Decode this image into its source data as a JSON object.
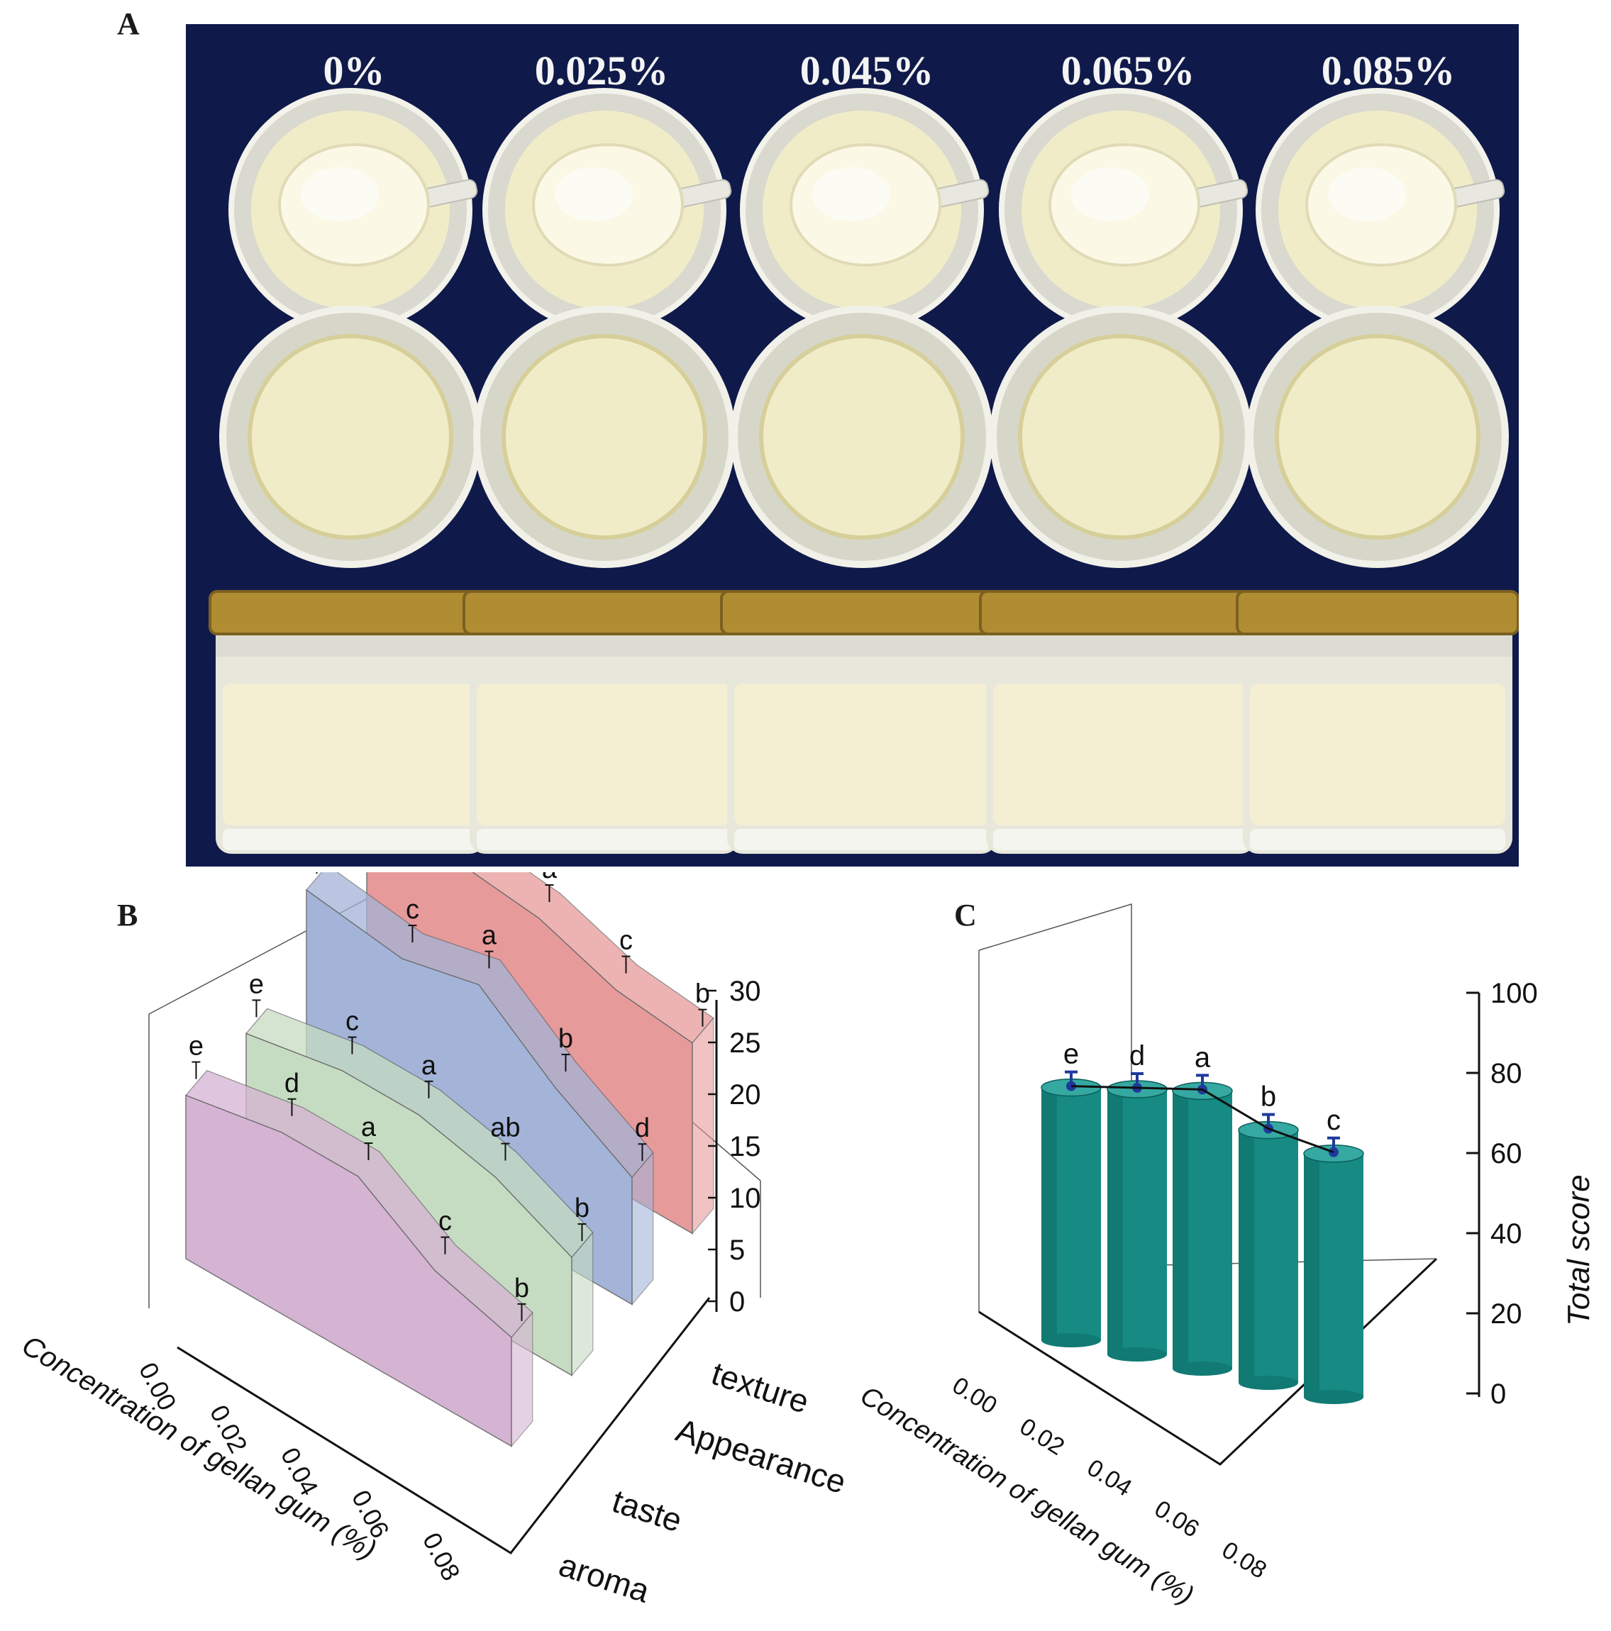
{
  "panels": {
    "a": "A",
    "b": "B",
    "c": "C"
  },
  "photo": {
    "concentrations": [
      "0%",
      "0.025%",
      "0.045%",
      "0.065%",
      "0.085%"
    ],
    "background_color": "#0f1a4a",
    "cream_color": "#f1ecc8",
    "lid_color": "#b08d33"
  },
  "chart_data": [
    {
      "type": "area",
      "ylim": [
        0,
        30
      ],
      "y_ticks": [
        "0",
        "5",
        "10",
        "15",
        "20",
        "25",
        "30"
      ],
      "x_ticks": [
        "0.00",
        "0.02",
        "0.04",
        "0.06",
        "0.08"
      ],
      "xlabel": "Concentration of gellan gum (%)",
      "x": [
        0,
        0.025,
        0.045,
        0.065,
        0.085
      ],
      "series": [
        {
          "name": "aroma",
          "values": [
            18,
            20,
            20,
            14.5,
            12
          ],
          "letters": [
            "e",
            "d",
            "a",
            "c",
            "b"
          ],
          "color": "#d5b3d3"
        },
        {
          "name": "taste",
          "values": [
            17,
            19,
            19,
            17,
            13
          ],
          "letters": [
            "e",
            "c",
            "a",
            "ab",
            "b"
          ],
          "color": "#c6dcc2"
        },
        {
          "name": "Appearance",
          "values": [
            25,
            23.5,
            25.5,
            19,
            14
          ],
          "letters": [
            "e",
            "c",
            "a",
            "b",
            "d"
          ],
          "color": "#a3b4d8"
        },
        {
          "name": "texture",
          "values": [
            26,
            26,
            25,
            22,
            21
          ],
          "letters": [
            "e",
            "d",
            "a",
            "c",
            "b"
          ],
          "color": "#e79a9a"
        }
      ]
    },
    {
      "type": "bar",
      "ylim": [
        0,
        100
      ],
      "y_ticks": [
        "0",
        "20",
        "40",
        "60",
        "80",
        "100"
      ],
      "x_ticks": [
        "0.00",
        "0.02",
        "0.04",
        "0.06",
        "0.08"
      ],
      "xlabel": "Concentration of gellan gum (%)",
      "ylabel": "Total score",
      "x": [
        0,
        0.025,
        0.045,
        0.065,
        0.085
      ],
      "values": [
        81,
        85,
        89,
        81,
        78
      ],
      "letters": [
        "e",
        "d",
        "a",
        "b",
        "c"
      ],
      "color": "#168a83"
    }
  ]
}
